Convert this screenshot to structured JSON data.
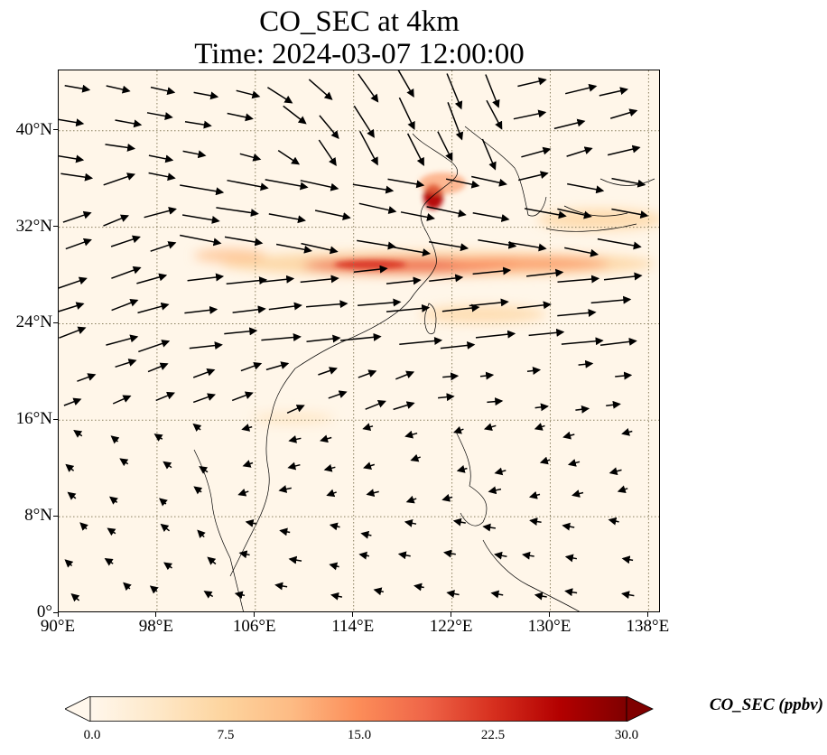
{
  "title": {
    "line1": "CO_SEC at 4km",
    "line2": "Time: 2024-03-07 12:00:00"
  },
  "map": {
    "lon_range": [
      90,
      139
    ],
    "lat_range": [
      0,
      45
    ],
    "grid": true,
    "gridline_style": "dotted",
    "projection": "PlateCarree",
    "variable": "CO_SEC",
    "level": "4km",
    "x_tick_labels": [
      "90°E",
      "98°E",
      "106°E",
      "114°E",
      "122°E",
      "130°E",
      "138°E"
    ],
    "y_tick_labels": [
      "0°",
      "8°N",
      "16°N",
      "24°N",
      "32°N",
      "40°N"
    ],
    "wind_vectors": true,
    "coastlines": true,
    "country_borders": true
  },
  "colorbar": {
    "label": "CO_SEC (ppbv)",
    "colormap": "OrRd",
    "min": 0.0,
    "max": 30.0,
    "extend": "both",
    "tick_labels": [
      "0.0",
      "7.5",
      "15.0",
      "22.5",
      "30.0"
    ],
    "colors": [
      "#fff7ec",
      "#fee8c8",
      "#fdd49e",
      "#fdbb84",
      "#fc8d59",
      "#ef6548",
      "#d7301f",
      "#b30000",
      "#7f0000"
    ]
  },
  "chart_data": {
    "type": "heatmap",
    "title": "CO_SEC at 4km",
    "subtitle": "Time: 2024-03-07 12:00:00",
    "plumes": [
      {
        "lon": [
          103,
          139
        ],
        "lat_center": 28.5,
        "peak_value": 16,
        "peak_lon": 117
      },
      {
        "lon": [
          118.5,
          120.5
        ],
        "lat_center": 35,
        "peak_value": 22,
        "peak_lon": 119.5
      },
      {
        "lon": [
          124,
          139
        ],
        "lat_center": 33,
        "peak_value": 8,
        "peak_lon": 136
      },
      {
        "lon": [
          122,
          132
        ],
        "lat_center": 24.8,
        "peak_value": 6,
        "peak_lon": 126
      },
      {
        "lon": [
          104,
          112
        ],
        "lat_center": 15.5,
        "peak_value": 4,
        "peak_lon": 108
      }
    ],
    "wind_regimes": [
      {
        "region": "north (lat > 36)",
        "direction": "east to south-southeast",
        "strength": "strong"
      },
      {
        "region": "central (22-34N)",
        "direction": "east-northeast",
        "strength": "strong"
      },
      {
        "region": "south (lat < 16)",
        "direction": "southwest to west",
        "strength": "weak"
      }
    ]
  }
}
